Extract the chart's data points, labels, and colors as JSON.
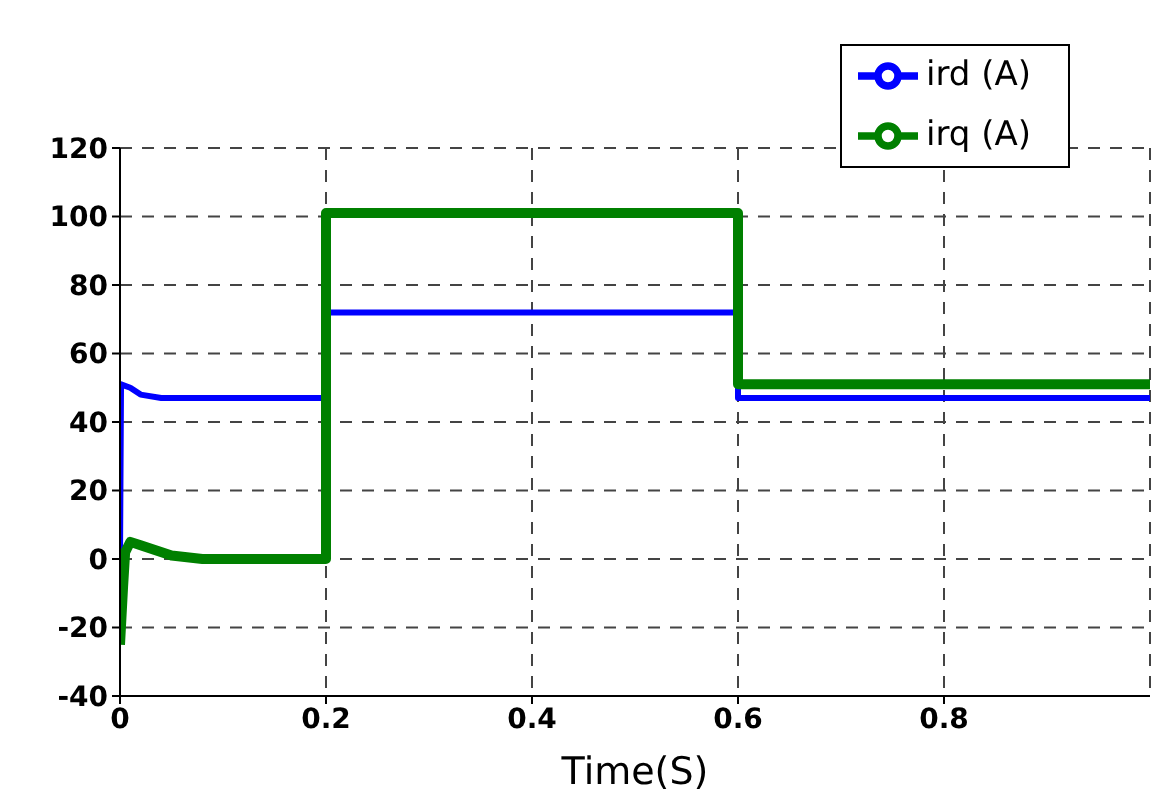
{
  "chart_data": {
    "type": "line",
    "xlabel": "Time(S)",
    "xlim": [
      0,
      1
    ],
    "xticks": [
      0,
      0.2,
      0.4,
      0.6,
      0.8
    ],
    "ylim": [
      -40,
      120
    ],
    "yticks": [
      -40,
      -20,
      0,
      20,
      40,
      60,
      80,
      100,
      120
    ],
    "grid": true,
    "legend": "top right",
    "line_style": "solid",
    "marker": "none",
    "series": [
      {
        "name": "ird  (A)",
        "color": "#0000ff",
        "x": [
          0,
          0.001,
          0.01,
          0.02,
          0.04,
          0.2,
          0.2,
          0.6,
          0.6,
          1
        ],
        "values": [
          0,
          51,
          50,
          48,
          47,
          47,
          72,
          72,
          47,
          47
        ]
      },
      {
        "name": "irq  (A)",
        "color": "#008000",
        "x": [
          0,
          0.003,
          0.005,
          0.01,
          0.02,
          0.05,
          0.08,
          0.2,
          0.2,
          0.6,
          0.6,
          1
        ],
        "values": [
          -25,
          -8,
          2,
          5,
          4,
          1,
          0,
          0,
          101,
          101,
          51,
          51
        ]
      }
    ]
  }
}
